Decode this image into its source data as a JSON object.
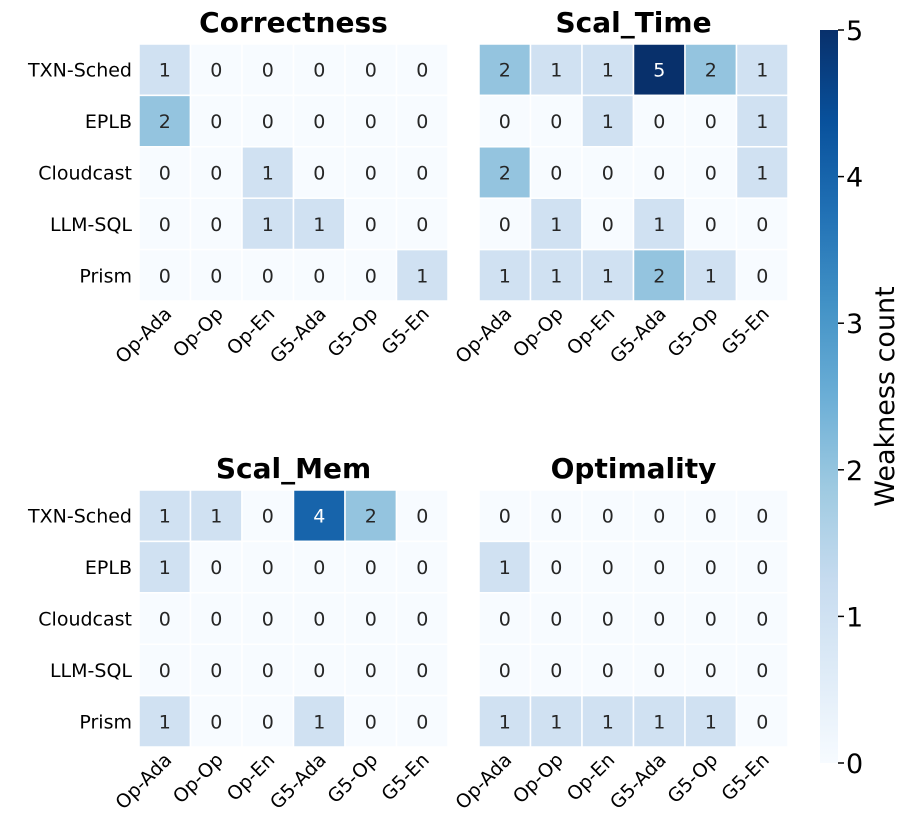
{
  "chart_data": {
    "type": "heatmap",
    "rows": [
      "TXN-Sched",
      "EPLB",
      "Cloudcast",
      "LLM-SQL",
      "Prism"
    ],
    "columns": [
      "Op-Ada",
      "Op-Op",
      "Op-En",
      "G5-Ada",
      "G5-Op",
      "G5-En"
    ],
    "colorbar": {
      "label": "Weakness count",
      "min": 0,
      "max": 5,
      "ticks": [
        "0",
        "1",
        "2",
        "3",
        "4",
        "5"
      ]
    },
    "colormap": [
      "#f7fbff",
      "#deebf7",
      "#c6dbef",
      "#9ecae1",
      "#6baed6",
      "#4292c6",
      "#2171b5",
      "#08519c",
      "#08306b"
    ],
    "panels": [
      {
        "title": "Correctness",
        "values": [
          [
            1,
            0,
            0,
            0,
            0,
            0
          ],
          [
            2,
            0,
            0,
            0,
            0,
            0
          ],
          [
            0,
            0,
            1,
            0,
            0,
            0
          ],
          [
            0,
            0,
            1,
            1,
            0,
            0
          ],
          [
            0,
            0,
            0,
            0,
            0,
            1
          ]
        ]
      },
      {
        "title": "Scal_Time",
        "values": [
          [
            2,
            1,
            1,
            5,
            2,
            1
          ],
          [
            0,
            0,
            1,
            0,
            0,
            1
          ],
          [
            2,
            0,
            0,
            0,
            0,
            1
          ],
          [
            0,
            1,
            0,
            1,
            0,
            0
          ],
          [
            1,
            1,
            1,
            2,
            1,
            0
          ]
        ]
      },
      {
        "title": "Scal_Mem",
        "values": [
          [
            1,
            1,
            0,
            4,
            2,
            0
          ],
          [
            1,
            0,
            0,
            0,
            0,
            0
          ],
          [
            0,
            0,
            0,
            0,
            0,
            0
          ],
          [
            0,
            0,
            0,
            0,
            0,
            0
          ],
          [
            1,
            0,
            0,
            1,
            0,
            0
          ]
        ]
      },
      {
        "title": "Optimality",
        "values": [
          [
            0,
            0,
            0,
            0,
            0,
            0
          ],
          [
            1,
            0,
            0,
            0,
            0,
            0
          ],
          [
            0,
            0,
            0,
            0,
            0,
            0
          ],
          [
            0,
            0,
            0,
            0,
            0,
            0
          ],
          [
            1,
            1,
            1,
            1,
            1,
            0
          ]
        ]
      }
    ]
  }
}
